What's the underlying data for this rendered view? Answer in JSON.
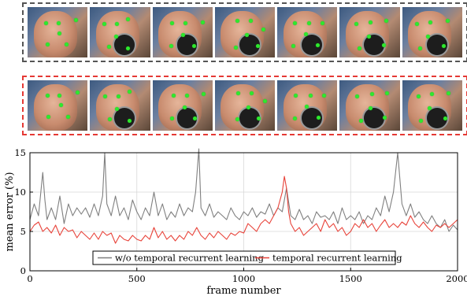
{
  "chart_data": {
    "type": "line",
    "xlabel": "frame number",
    "ylabel": "mean error (%)",
    "xlim": [
      0,
      2000
    ],
    "ylim": [
      0,
      15
    ],
    "xticks": [
      0,
      500,
      1000,
      1500,
      2000
    ],
    "yticks": [
      0,
      5,
      10,
      15
    ],
    "grid": true,
    "legend_position": "bottom-center",
    "series": [
      {
        "name": "w/o temporal recurrent learning",
        "color": "#7f7f7f",
        "points": [
          [
            0,
            6.5
          ],
          [
            20,
            8.5
          ],
          [
            40,
            7.0
          ],
          [
            60,
            12.5
          ],
          [
            70,
            9.0
          ],
          [
            80,
            6.5
          ],
          [
            100,
            8.0
          ],
          [
            120,
            6.5
          ],
          [
            140,
            9.5
          ],
          [
            160,
            6.0
          ],
          [
            180,
            8.5
          ],
          [
            200,
            7.0
          ],
          [
            220,
            8.0
          ],
          [
            240,
            7.2
          ],
          [
            260,
            8.0
          ],
          [
            280,
            6.8
          ],
          [
            300,
            8.5
          ],
          [
            320,
            7.0
          ],
          [
            340,
            9.5
          ],
          [
            350,
            15.0
          ],
          [
            360,
            8.5
          ],
          [
            380,
            7.0
          ],
          [
            400,
            9.5
          ],
          [
            420,
            7.0
          ],
          [
            440,
            8.0
          ],
          [
            460,
            6.5
          ],
          [
            480,
            9.0
          ],
          [
            500,
            7.5
          ],
          [
            520,
            6.5
          ],
          [
            540,
            8.0
          ],
          [
            560,
            7.0
          ],
          [
            580,
            10.0
          ],
          [
            600,
            7.0
          ],
          [
            620,
            8.5
          ],
          [
            640,
            6.5
          ],
          [
            660,
            7.5
          ],
          [
            680,
            6.8
          ],
          [
            700,
            8.5
          ],
          [
            720,
            7.0
          ],
          [
            740,
            8.0
          ],
          [
            760,
            7.5
          ],
          [
            775,
            10.0
          ],
          [
            790,
            15.5
          ],
          [
            800,
            8.0
          ],
          [
            820,
            7.0
          ],
          [
            840,
            8.5
          ],
          [
            860,
            6.8
          ],
          [
            880,
            7.5
          ],
          [
            900,
            7.0
          ],
          [
            920,
            6.5
          ],
          [
            940,
            8.0
          ],
          [
            960,
            7.0
          ],
          [
            980,
            6.5
          ],
          [
            1000,
            7.5
          ],
          [
            1020,
            7.0
          ],
          [
            1040,
            8.0
          ],
          [
            1060,
            6.8
          ],
          [
            1080,
            7.5
          ],
          [
            1100,
            7.2
          ],
          [
            1120,
            8.5
          ],
          [
            1140,
            7.0
          ],
          [
            1160,
            8.0
          ],
          [
            1180,
            7.5
          ],
          [
            1200,
            10.5
          ],
          [
            1220,
            7.0
          ],
          [
            1240,
            6.5
          ],
          [
            1260,
            7.8
          ],
          [
            1280,
            6.5
          ],
          [
            1300,
            7.0
          ],
          [
            1320,
            6.0
          ],
          [
            1340,
            7.5
          ],
          [
            1360,
            6.8
          ],
          [
            1380,
            7.0
          ],
          [
            1400,
            6.5
          ],
          [
            1420,
            7.5
          ],
          [
            1440,
            6.0
          ],
          [
            1460,
            8.0
          ],
          [
            1480,
            6.5
          ],
          [
            1500,
            7.0
          ],
          [
            1520,
            6.5
          ],
          [
            1540,
            7.5
          ],
          [
            1560,
            6.0
          ],
          [
            1580,
            7.0
          ],
          [
            1600,
            6.5
          ],
          [
            1620,
            8.0
          ],
          [
            1640,
            7.0
          ],
          [
            1660,
            9.5
          ],
          [
            1680,
            7.5
          ],
          [
            1700,
            10.0
          ],
          [
            1720,
            15.0
          ],
          [
            1740,
            8.5
          ],
          [
            1760,
            7.0
          ],
          [
            1780,
            8.5
          ],
          [
            1800,
            6.8
          ],
          [
            1820,
            7.5
          ],
          [
            1840,
            6.5
          ],
          [
            1860,
            6.0
          ],
          [
            1880,
            7.0
          ],
          [
            1900,
            6.0
          ],
          [
            1920,
            5.5
          ],
          [
            1940,
            6.5
          ],
          [
            1960,
            5.0
          ],
          [
            1980,
            5.8
          ],
          [
            2000,
            5.2
          ]
        ]
      },
      {
        "name": "temporal recurrent learning",
        "color": "#e8433a",
        "points": [
          [
            0,
            5.0
          ],
          [
            20,
            5.8
          ],
          [
            40,
            6.2
          ],
          [
            60,
            5.0
          ],
          [
            80,
            5.5
          ],
          [
            100,
            4.8
          ],
          [
            120,
            5.8
          ],
          [
            140,
            4.5
          ],
          [
            160,
            5.5
          ],
          [
            180,
            5.0
          ],
          [
            200,
            5.2
          ],
          [
            220,
            4.2
          ],
          [
            240,
            5.0
          ],
          [
            260,
            4.5
          ],
          [
            280,
            4.0
          ],
          [
            300,
            4.8
          ],
          [
            320,
            4.0
          ],
          [
            340,
            5.0
          ],
          [
            360,
            4.5
          ],
          [
            380,
            4.8
          ],
          [
            400,
            3.5
          ],
          [
            420,
            4.5
          ],
          [
            440,
            4.0
          ],
          [
            460,
            3.8
          ],
          [
            480,
            4.5
          ],
          [
            500,
            4.0
          ],
          [
            520,
            3.8
          ],
          [
            540,
            4.5
          ],
          [
            560,
            4.0
          ],
          [
            580,
            5.5
          ],
          [
            600,
            4.2
          ],
          [
            620,
            5.0
          ],
          [
            640,
            4.0
          ],
          [
            660,
            4.5
          ],
          [
            680,
            3.8
          ],
          [
            700,
            4.5
          ],
          [
            720,
            4.0
          ],
          [
            740,
            5.0
          ],
          [
            760,
            4.5
          ],
          [
            780,
            5.5
          ],
          [
            800,
            4.5
          ],
          [
            820,
            4.0
          ],
          [
            840,
            4.8
          ],
          [
            860,
            4.2
          ],
          [
            880,
            5.0
          ],
          [
            900,
            4.5
          ],
          [
            920,
            4.0
          ],
          [
            940,
            4.8
          ],
          [
            960,
            4.5
          ],
          [
            980,
            5.0
          ],
          [
            1000,
            4.8
          ],
          [
            1020,
            6.0
          ],
          [
            1040,
            5.5
          ],
          [
            1060,
            5.0
          ],
          [
            1080,
            6.0
          ],
          [
            1100,
            6.5
          ],
          [
            1120,
            6.0
          ],
          [
            1140,
            7.0
          ],
          [
            1160,
            8.0
          ],
          [
            1180,
            10.0
          ],
          [
            1190,
            12.0
          ],
          [
            1200,
            10.5
          ],
          [
            1210,
            7.5
          ],
          [
            1220,
            6.0
          ],
          [
            1240,
            5.0
          ],
          [
            1260,
            5.5
          ],
          [
            1280,
            4.5
          ],
          [
            1300,
            5.0
          ],
          [
            1320,
            5.5
          ],
          [
            1340,
            6.0
          ],
          [
            1360,
            5.0
          ],
          [
            1380,
            6.5
          ],
          [
            1400,
            5.5
          ],
          [
            1420,
            6.0
          ],
          [
            1440,
            5.0
          ],
          [
            1460,
            5.5
          ],
          [
            1480,
            4.5
          ],
          [
            1500,
            5.0
          ],
          [
            1520,
            6.0
          ],
          [
            1540,
            5.5
          ],
          [
            1560,
            6.5
          ],
          [
            1580,
            5.5
          ],
          [
            1600,
            6.0
          ],
          [
            1620,
            5.0
          ],
          [
            1640,
            5.8
          ],
          [
            1660,
            6.5
          ],
          [
            1680,
            5.5
          ],
          [
            1700,
            6.0
          ],
          [
            1720,
            5.5
          ],
          [
            1740,
            6.2
          ],
          [
            1760,
            5.8
          ],
          [
            1780,
            7.0
          ],
          [
            1800,
            6.0
          ],
          [
            1820,
            5.5
          ],
          [
            1840,
            6.2
          ],
          [
            1860,
            5.5
          ],
          [
            1880,
            5.0
          ],
          [
            1900,
            5.8
          ],
          [
            1920,
            5.5
          ],
          [
            1940,
            6.0
          ],
          [
            1960,
            5.5
          ],
          [
            1980,
            6.0
          ],
          [
            2000,
            6.5
          ]
        ]
      }
    ]
  }
}
